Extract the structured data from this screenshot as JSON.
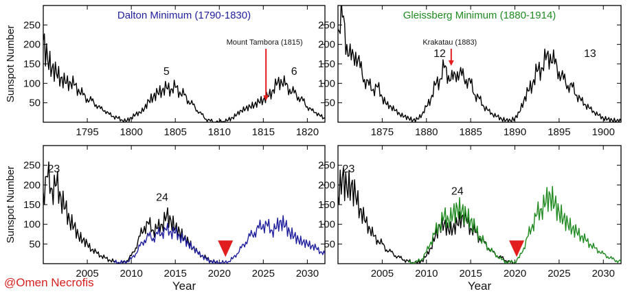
{
  "credit": "@Omen Necrofis",
  "colors": {
    "main": "#000000",
    "dalton": "#1f1f9e",
    "gleissberg": "#1f8a1f",
    "marker": "#e11d1d"
  },
  "chart_data": [
    {
      "type": "line",
      "panel": "top-left",
      "title": "Dalton Minimum (1790-1830)",
      "title_color": "#1f1f9e",
      "ylabel": "Sunspot Number",
      "xlabel": "",
      "xlim": [
        1790,
        1822
      ],
      "ylim": [
        0,
        300
      ],
      "xticks": [
        "1795",
        "1800",
        "1805",
        "1810",
        "1815",
        "1820"
      ],
      "yticks": [
        "50",
        "100",
        "150",
        "200",
        "250"
      ],
      "grid": false,
      "series": [
        {
          "color": "#000000",
          "x": [
            1790,
            1790.5,
            1791,
            1791.5,
            1792,
            1792.5,
            1793,
            1793.5,
            1794,
            1794.5,
            1795,
            1795.5,
            1796,
            1796.5,
            1797,
            1797.5,
            1798,
            1798.5,
            1799,
            1799.5,
            1800,
            1800.5,
            1801,
            1801.5,
            1802,
            1802.5,
            1803,
            1803.5,
            1804,
            1804.5,
            1805,
            1805.5,
            1806,
            1806.5,
            1807,
            1807.5,
            1808,
            1808.5,
            1809,
            1809.5,
            1810,
            1810.5,
            1811,
            1811.5,
            1812,
            1812.5,
            1813,
            1813.5,
            1814,
            1814.5,
            1815,
            1815.5,
            1816,
            1816.5,
            1817,
            1817.5,
            1818,
            1818.5,
            1819,
            1819.5,
            1820,
            1820.5,
            1821,
            1821.5,
            1822
          ],
          "y": [
            210,
            160,
            140,
            125,
            115,
            100,
            105,
            95,
            85,
            70,
            60,
            55,
            45,
            35,
            30,
            20,
            15,
            10,
            5,
            3,
            12,
            20,
            25,
            35,
            55,
            65,
            75,
            82,
            88,
            85,
            90,
            78,
            70,
            55,
            45,
            30,
            20,
            8,
            3,
            0,
            0,
            2,
            5,
            12,
            20,
            30,
            35,
            40,
            45,
            52,
            58,
            65,
            80,
            95,
            110,
            95,
            85,
            75,
            65,
            55,
            40,
            30,
            25,
            15,
            10
          ]
        }
      ],
      "annotations": [
        {
          "text": "Mount Tambora (1815)",
          "x": 1815.3,
          "arrow_to_y": 55
        },
        {
          "text": "5",
          "x": 1804,
          "y": 122
        },
        {
          "text": "6",
          "x": 1818.5,
          "y": 122
        }
      ]
    },
    {
      "type": "line",
      "panel": "top-right",
      "title": "Gleissberg Minimum (1880-1914)",
      "title_color": "#1f8a1f",
      "ylabel": "",
      "xlabel": "",
      "xlim": [
        1870,
        1902
      ],
      "ylim": [
        0,
        300
      ],
      "xticks": [
        "1875",
        "1880",
        "1885",
        "1890",
        "1895",
        "1900"
      ],
      "yticks": [
        "50",
        "100",
        "150",
        "200",
        "250"
      ],
      "grid": false,
      "series": [
        {
          "color": "#000000",
          "x": [
            1870,
            1870.5,
            1871,
            1871.5,
            1872,
            1872.5,
            1873,
            1873.5,
            1874,
            1874.5,
            1875,
            1875.5,
            1876,
            1876.5,
            1877,
            1877.5,
            1878,
            1878.5,
            1879,
            1879.5,
            1880,
            1880.5,
            1881,
            1881.5,
            1882,
            1882.5,
            1883,
            1883.5,
            1884,
            1884.5,
            1885,
            1885.5,
            1886,
            1886.5,
            1887,
            1887.5,
            1888,
            1888.5,
            1889,
            1889.5,
            1890,
            1890.5,
            1891,
            1891.5,
            1892,
            1892.5,
            1893,
            1893.5,
            1894,
            1894.5,
            1895,
            1895.5,
            1896,
            1896.5,
            1897,
            1897.5,
            1898,
            1898.5,
            1899,
            1899.5,
            1900,
            1900.5,
            1901,
            1901.5,
            1902
          ],
          "y": [
            240,
            270,
            200,
            160,
            180,
            140,
            110,
            95,
            85,
            90,
            65,
            45,
            40,
            30,
            20,
            15,
            10,
            5,
            8,
            20,
            40,
            60,
            95,
            110,
            140,
            120,
            110,
            130,
            120,
            110,
            100,
            70,
            60,
            40,
            30,
            20,
            15,
            8,
            5,
            4,
            10,
            25,
            55,
            80,
            100,
            130,
            140,
            160,
            175,
            150,
            130,
            110,
            95,
            90,
            70,
            55,
            45,
            35,
            25,
            18,
            10,
            8,
            5,
            4,
            3
          ]
        }
      ],
      "annotations": [
        {
          "text": "Krakatau (1883)",
          "x": 1882.8,
          "arrow_to_y": 145
        },
        {
          "text": "12",
          "x": 1881.5,
          "y": 168
        },
        {
          "text": "13",
          "x": 1898.5,
          "y": 168
        }
      ]
    },
    {
      "type": "line",
      "panel": "bottom-left",
      "title": "",
      "ylabel": "Sunspot Number",
      "xlabel": "Year",
      "xlim": [
        2000,
        2032
      ],
      "ylim": [
        0,
        300
      ],
      "xticks": [
        "2005",
        "2010",
        "2015",
        "2020",
        "2025",
        "2030"
      ],
      "yticks": [
        "50",
        "100",
        "150",
        "200",
        "250"
      ],
      "grid": false,
      "series": [
        {
          "color": "#000000",
          "x": [
            2000,
            2000.5,
            2001,
            2001.5,
            2002,
            2002.5,
            2003,
            2003.5,
            2004,
            2004.5,
            2005,
            2005.5,
            2006,
            2006.5,
            2007,
            2007.5,
            2008,
            2008.5,
            2009,
            2009.5,
            2010,
            2010.5,
            2011,
            2011.5,
            2012,
            2012.5,
            2013,
            2013.5,
            2014,
            2014.5,
            2015,
            2015.5,
            2016,
            2016.5,
            2017,
            2017.5,
            2018,
            2018.5,
            2019,
            2019.5,
            2020
          ],
          "y": [
            180,
            220,
            190,
            200,
            170,
            140,
            110,
            95,
            70,
            60,
            50,
            35,
            30,
            20,
            15,
            10,
            5,
            3,
            2,
            8,
            20,
            40,
            70,
            95,
            100,
            85,
            90,
            100,
            120,
            110,
            90,
            80,
            65,
            55,
            40,
            30,
            20,
            15,
            8,
            3,
            2
          ]
        },
        {
          "color": "#1f1f9e",
          "x": [
            2008,
            2008.5,
            2009,
            2009.5,
            2010,
            2010.5,
            2011,
            2011.5,
            2012,
            2012.5,
            2013,
            2013.5,
            2014,
            2014.5,
            2015,
            2015.5,
            2016,
            2016.5,
            2017,
            2017.5,
            2018,
            2018.5,
            2019,
            2019.5,
            2020,
            2020.5,
            2021,
            2021.5,
            2022,
            2022.5,
            2023,
            2023.5,
            2024,
            2024.5,
            2025,
            2025.5,
            2026,
            2026.5,
            2027,
            2027.5,
            2028,
            2028.5,
            2029,
            2029.5,
            2030,
            2030.5,
            2031,
            2031.5,
            2032
          ],
          "y": [
            5,
            3,
            2,
            5,
            12,
            25,
            45,
            60,
            70,
            65,
            75,
            80,
            85,
            82,
            78,
            70,
            60,
            50,
            40,
            30,
            20,
            12,
            6,
            3,
            2,
            2,
            5,
            12,
            25,
            40,
            55,
            70,
            80,
            90,
            100,
            95,
            85,
            90,
            110,
            95,
            80,
            70,
            60,
            55,
            50,
            45,
            40,
            30,
            25
          ]
        }
      ],
      "annotations": [
        {
          "text": "23",
          "x": 2001.2,
          "y": 232
        },
        {
          "text": "24",
          "x": 2013.5,
          "y": 160
        }
      ],
      "markers": [
        {
          "shape": "triangle-down",
          "x": 2020.7,
          "y": 38
        }
      ]
    },
    {
      "type": "line",
      "panel": "bottom-right",
      "title": "",
      "ylabel": "",
      "xlabel": "Year",
      "xlim": [
        2000,
        2032
      ],
      "ylim": [
        0,
        300
      ],
      "xticks": [
        "2005",
        "2010",
        "2015",
        "2020",
        "2025",
        "2030"
      ],
      "yticks": [
        "50",
        "100",
        "150",
        "200",
        "250"
      ],
      "grid": false,
      "series": [
        {
          "color": "#000000",
          "x": [
            2000,
            2000.5,
            2001,
            2001.5,
            2002,
            2002.5,
            2003,
            2003.5,
            2004,
            2004.5,
            2005,
            2005.5,
            2006,
            2006.5,
            2007,
            2007.5,
            2008,
            2008.5,
            2009,
            2009.5,
            2010,
            2010.5,
            2011,
            2011.5,
            2012,
            2012.5,
            2013,
            2013.5,
            2014,
            2014.5,
            2015,
            2015.5,
            2016,
            2016.5,
            2017,
            2017.5,
            2018,
            2018.5,
            2019,
            2019.5,
            2020
          ],
          "y": [
            170,
            220,
            190,
            200,
            170,
            140,
            110,
            95,
            70,
            60,
            50,
            35,
            30,
            20,
            15,
            10,
            5,
            3,
            2,
            8,
            20,
            40,
            70,
            95,
            100,
            85,
            90,
            100,
            120,
            110,
            90,
            80,
            65,
            55,
            40,
            30,
            20,
            15,
            8,
            3,
            2
          ]
        },
        {
          "color": "#1f8a1f",
          "x": [
            2008,
            2008.5,
            2009,
            2009.5,
            2010,
            2010.5,
            2011,
            2011.5,
            2012,
            2012.5,
            2013,
            2013.5,
            2014,
            2014.5,
            2015,
            2015.5,
            2016,
            2016.5,
            2017,
            2017.5,
            2018,
            2018.5,
            2019,
            2019.5,
            2020,
            2020.5,
            2021,
            2021.5,
            2022,
            2022.5,
            2023,
            2023.5,
            2024,
            2024.5,
            2025,
            2025.5,
            2026,
            2026.5,
            2027,
            2027.5,
            2028,
            2028.5,
            2029,
            2029.5,
            2030,
            2030.5,
            2031,
            2031.5,
            2032
          ],
          "y": [
            3,
            2,
            5,
            12,
            30,
            55,
            80,
            100,
            120,
            110,
            125,
            140,
            135,
            120,
            110,
            90,
            70,
            55,
            40,
            30,
            20,
            10,
            5,
            3,
            5,
            15,
            40,
            70,
            100,
            125,
            140,
            155,
            175,
            150,
            130,
            115,
            100,
            90,
            80,
            70,
            60,
            50,
            40,
            32,
            25,
            18,
            12,
            8,
            5
          ]
        }
      ],
      "annotations": [
        {
          "text": "23",
          "x": 2001.2,
          "y": 232
        },
        {
          "text": "24",
          "x": 2013.5,
          "y": 175
        }
      ],
      "markers": [
        {
          "shape": "triangle-down",
          "x": 2020.2,
          "y": 38
        }
      ]
    }
  ]
}
